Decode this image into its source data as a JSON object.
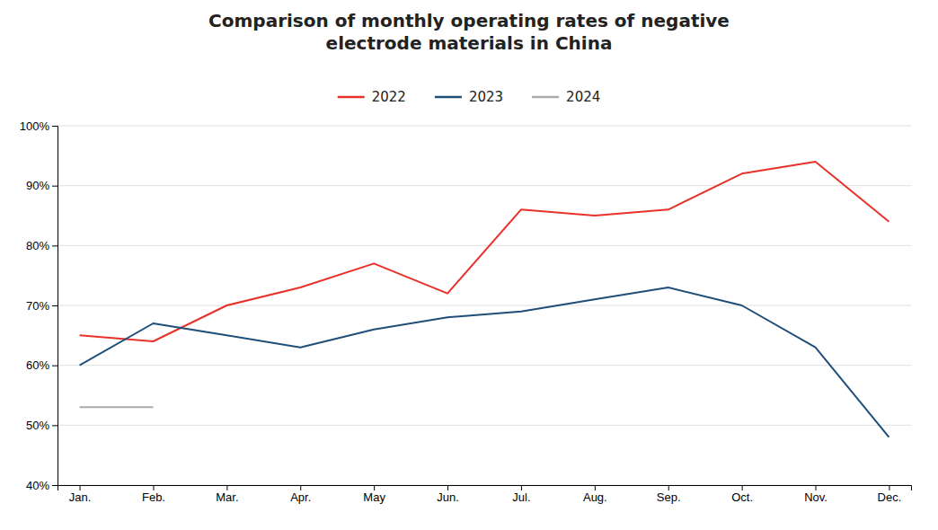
{
  "chart_data": {
    "type": "line",
    "title": "Comparison of monthly operating rates of negative\nelectrode materials in China",
    "categories": [
      "Jan.",
      "Feb.",
      "Mar.",
      "Apr.",
      "May",
      "Jun.",
      "Jul.",
      "Aug.",
      "Sep.",
      "Oct.",
      "Nov.",
      "Dec."
    ],
    "series": [
      {
        "name": "2022",
        "color": "#e8312a",
        "values": [
          0.65,
          0.64,
          0.7,
          0.73,
          0.77,
          0.72,
          0.86,
          0.85,
          0.86,
          0.92,
          0.94,
          0.84
        ]
      },
      {
        "name": "2023",
        "color": "#1f4e79",
        "values": [
          0.6,
          0.67,
          0.65,
          0.63,
          0.66,
          0.68,
          0.69,
          0.71,
          0.73,
          0.7,
          0.63,
          0.48
        ]
      },
      {
        "name": "2024",
        "color": "#aaaaaa",
        "values": [
          0.53,
          0.53,
          null,
          null,
          null,
          null,
          null,
          null,
          null,
          null,
          null,
          null
        ]
      }
    ],
    "ylim": [
      0.4,
      1.0
    ],
    "yticks": [
      {
        "value": 0.4,
        "label": "40%"
      },
      {
        "value": 0.5,
        "label": "50%"
      },
      {
        "value": 0.6,
        "label": "60%"
      },
      {
        "value": 0.7,
        "label": "70%"
      },
      {
        "value": 0.8,
        "label": "80%"
      },
      {
        "value": 0.9,
        "label": "90%"
      },
      {
        "value": 1.0,
        "label": "100%"
      }
    ],
    "grid": true,
    "legend": "top"
  }
}
